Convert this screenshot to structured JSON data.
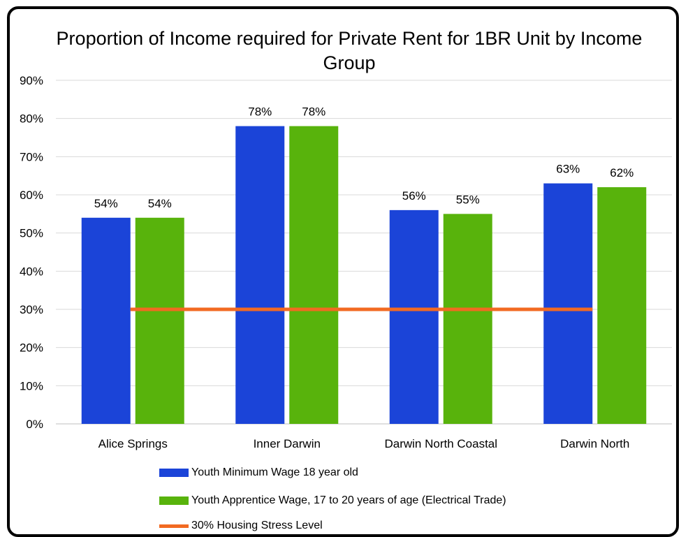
{
  "chart_data": {
    "type": "bar",
    "title": "Proportion of Income required for Private Rent for 1BR Unit by Income Group",
    "categories": [
      "Alice Springs",
      "Inner Darwin",
      "Darwin North Coastal",
      "Darwin North"
    ],
    "series": [
      {
        "name": "Youth Minimum Wage 18 year old",
        "values": [
          54,
          78,
          56,
          63
        ],
        "color": "#1b44d8"
      },
      {
        "name": "Youth Apprentice Wage, 17 to 20 years of age (Electrical Trade)",
        "values": [
          54,
          78,
          55,
          62
        ],
        "color": "#58b30c"
      }
    ],
    "reference_line": {
      "name": "30% Housing Stress Level",
      "value": 30,
      "color": "#f26a22"
    },
    "data_labels": [
      [
        "54%",
        "78%",
        "56%",
        "63%"
      ],
      [
        "54%",
        "78%",
        "55%",
        "62%"
      ]
    ],
    "yticks": [
      "0%",
      "10%",
      "20%",
      "30%",
      "40%",
      "50%",
      "60%",
      "70%",
      "80%",
      "90%"
    ],
    "ylim": [
      0,
      90
    ],
    "grid": true,
    "legend_position": "bottom"
  }
}
